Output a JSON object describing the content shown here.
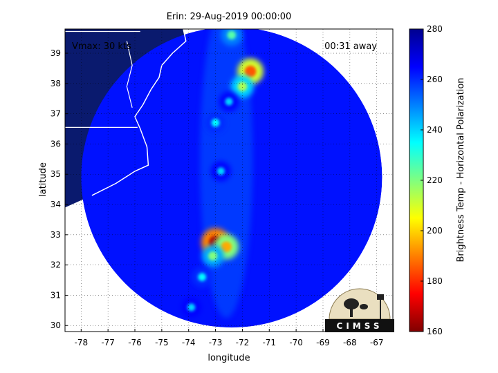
{
  "chart_data": {
    "type": "heatmap",
    "title": "Erin: 29-Aug-2019 00:00:00",
    "xlabel": "longitude",
    "ylabel": "latitude",
    "xlim": [
      -78.6,
      -66.4
    ],
    "ylim": [
      29.8,
      39.8
    ],
    "x_ticks": [
      -78,
      -77,
      -76,
      -75,
      -74,
      -73,
      -72,
      -71,
      -70,
      -69,
      -68,
      -67
    ],
    "y_ticks": [
      30,
      31,
      32,
      33,
      34,
      35,
      36,
      37,
      38,
      39
    ],
    "grid": true,
    "colorbar": {
      "label": "Brightness Temp - Horizontal Polarization",
      "min": 160,
      "max": 280,
      "ticks": [
        160,
        180,
        200,
        220,
        240,
        260,
        280
      ],
      "colormap": "jet"
    },
    "annotations": {
      "vmax": "Vmax: 30 kts",
      "time_away": "00:31 away"
    },
    "swath": {
      "center_lon": -72.4,
      "center_lat": 34.9,
      "radius_deg": 5.6
    },
    "background_level": 263,
    "cells": [
      {
        "lon": -72.4,
        "lat": 39.6,
        "value": 225
      },
      {
        "lon": -71.7,
        "lat": 38.4,
        "value": 185
      },
      {
        "lon": -72.0,
        "lat": 37.9,
        "value": 215
      },
      {
        "lon": -72.5,
        "lat": 37.4,
        "value": 240
      },
      {
        "lon": -73.0,
        "lat": 36.7,
        "value": 235
      },
      {
        "lon": -72.8,
        "lat": 35.1,
        "value": 240
      },
      {
        "lon": -73.0,
        "lat": 32.75,
        "value": 165
      },
      {
        "lon": -72.6,
        "lat": 32.6,
        "value": 195
      },
      {
        "lon": -73.1,
        "lat": 32.3,
        "value": 220
      },
      {
        "lon": -73.5,
        "lat": 31.6,
        "value": 235
      },
      {
        "lon": -73.9,
        "lat": 30.6,
        "value": 240
      }
    ]
  },
  "colors": {
    "land": "#0a1a6e",
    "coast": "#ffffff"
  },
  "logo": {
    "text": "CIMSS"
  }
}
